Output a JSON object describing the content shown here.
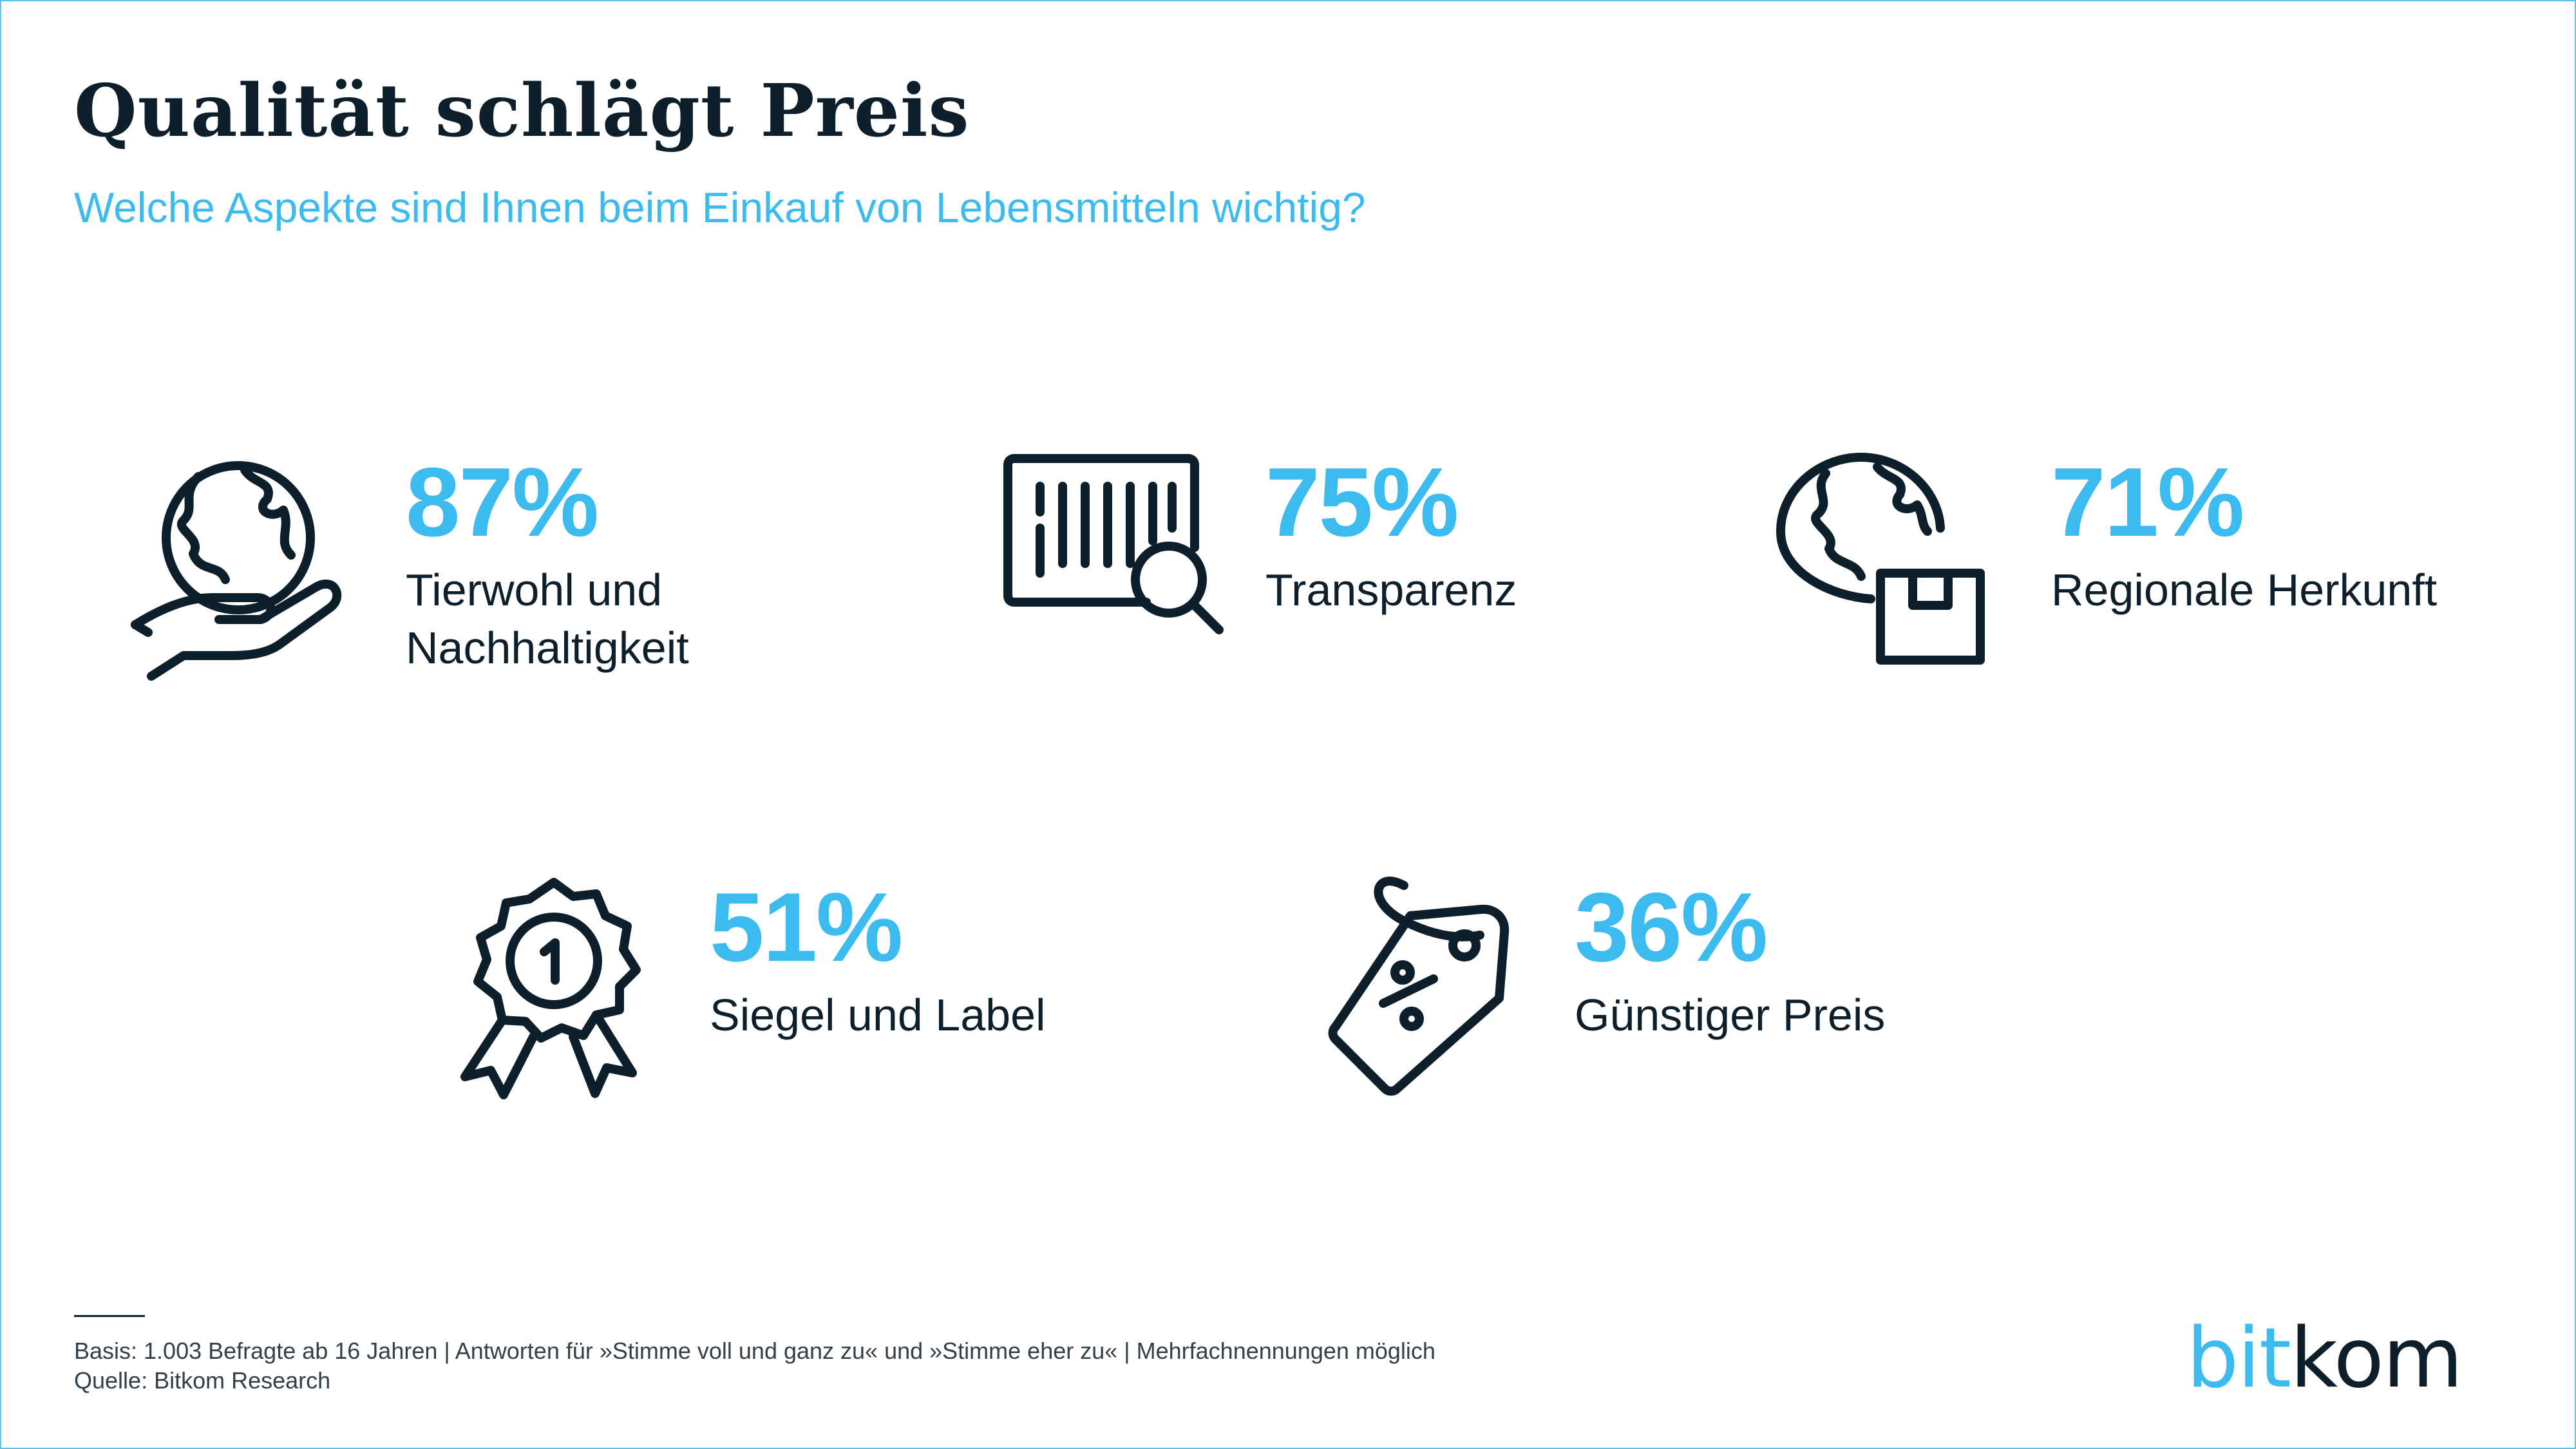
{
  "title": "Qualität schlägt Preis",
  "subtitle": "Welche Aspekte sind Ihnen beim Einkauf von Lebensmitteln wichtig?",
  "colors": {
    "accent": "#3cbbf0",
    "text": "#0d1f2a",
    "border": "#5cc3ea"
  },
  "chart_data": {
    "type": "table",
    "unit": "%",
    "items": [
      {
        "label_line1": "Tierwohl und",
        "label_line2": "Nachhaltigkeit",
        "value": 87,
        "value_label": "87%",
        "icon": "hand-globe-icon"
      },
      {
        "label_line1": "Transparenz",
        "label_line2": "",
        "value": 75,
        "value_label": "75%",
        "icon": "barcode-search-icon"
      },
      {
        "label_line1": "Regionale Herkunft",
        "label_line2": "",
        "value": 71,
        "value_label": "71%",
        "icon": "globe-package-icon"
      },
      {
        "label_line1": "Siegel und Label",
        "label_line2": "",
        "value": 51,
        "value_label": "51%",
        "icon": "award-badge-icon"
      },
      {
        "label_line1": "Günstiger Preis",
        "label_line2": "",
        "value": 36,
        "value_label": "36%",
        "icon": "price-tag-icon"
      }
    ]
  },
  "footer": {
    "basis": "Basis: 1.003 Befragte ab 16 Jahren | Antworten für »Stimme voll und ganz zu« und »Stimme eher zu« | Mehrfachnennungen möglich",
    "source": "Quelle: Bitkom Research"
  },
  "logo": {
    "part1": "bit",
    "part2": "kom"
  }
}
